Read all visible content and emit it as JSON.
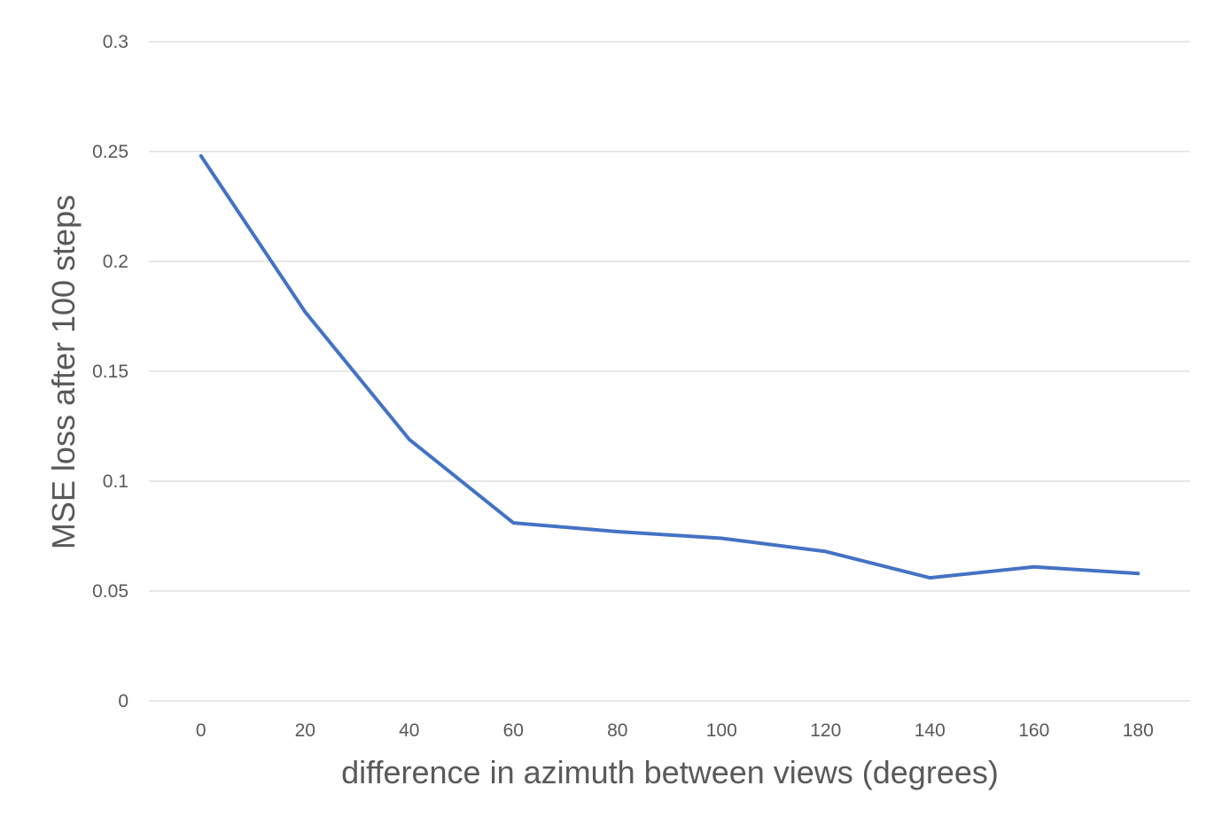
{
  "chart_data": {
    "type": "line",
    "title": "",
    "xlabel": "difference in azimuth between views (degrees)",
    "ylabel": "MSE loss after 100 steps",
    "categories": [
      "0",
      "20",
      "40",
      "60",
      "80",
      "100",
      "120",
      "140",
      "160",
      "180"
    ],
    "series": [
      {
        "values": [
          0.248,
          0.177,
          0.119,
          0.081,
          0.077,
          0.074,
          0.068,
          0.056,
          0.061,
          0.058
        ],
        "color": "#4472c4"
      }
    ],
    "yticks": [
      "0",
      "0.05",
      "0.1",
      "0.15",
      "0.2",
      "0.25",
      "0.3"
    ],
    "ylim": [
      0,
      0.3
    ],
    "grid": true,
    "legend": "none"
  }
}
